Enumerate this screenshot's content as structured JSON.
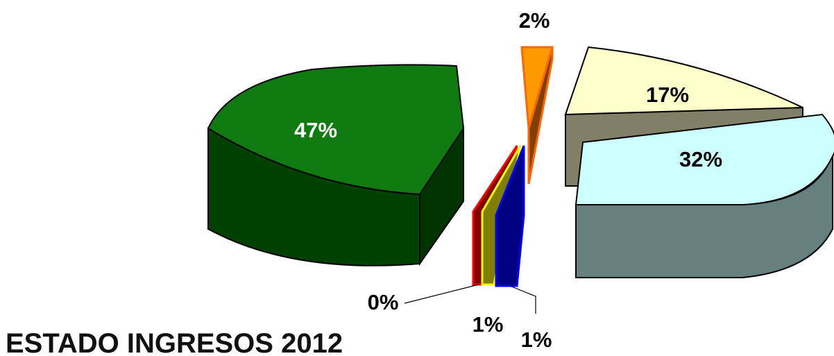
{
  "chart_data": {
    "type": "pie",
    "title": "ESTADO INGRESOS 2012",
    "slices": [
      {
        "label": "47%",
        "value": 47,
        "color_top": "#0f7a0f",
        "color_side": "#004000"
      },
      {
        "label": "2%",
        "value": 2,
        "color_top": "#ff9900",
        "color_side": "#804000"
      },
      {
        "label": "17%",
        "value": 17,
        "color_top": "#ffffcc",
        "color_side": "#808066"
      },
      {
        "label": "32%",
        "value": 32,
        "color_top": "#ccffff",
        "color_side": "#668080"
      },
      {
        "label": "1%",
        "value": 1,
        "color_top": "#0000ff",
        "color_side": "#000080"
      },
      {
        "label": "1%",
        "value": 1,
        "color_top": "#ffff00",
        "color_side": "#808000"
      },
      {
        "label": "0%",
        "value": 0,
        "color_top": "#ff0000",
        "color_side": "#800000"
      }
    ]
  }
}
